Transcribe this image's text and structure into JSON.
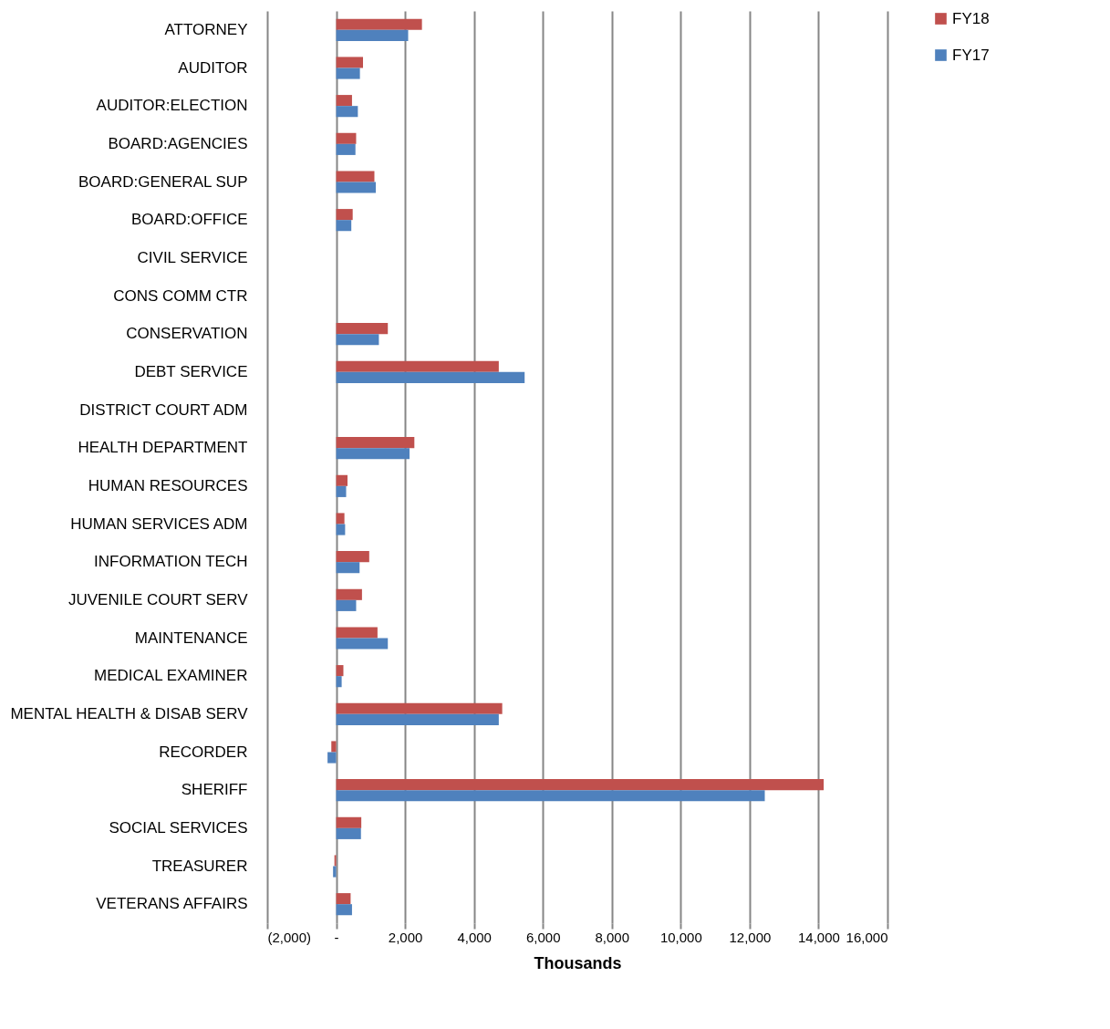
{
  "chart_data": {
    "type": "bar",
    "orientation": "horizontal",
    "xlabel": "Thousands",
    "categories": [
      "ATTORNEY",
      "AUDITOR",
      "AUDITOR:ELECTION",
      "BOARD:AGENCIES",
      "BOARD:GENERAL SUP",
      "BOARD:OFFICE",
      "CIVIL SERVICE",
      "CONS COMM CTR",
      "CONSERVATION",
      "DEBT SERVICE",
      "DISTRICT COURT ADM",
      "HEALTH DEPARTMENT",
      "HUMAN RESOURCES",
      "HUMAN SERVICES ADM",
      "INFORMATION TECH",
      "JUVENILE COURT SERV",
      "MAINTENANCE",
      "MEDICAL EXAMINER",
      "MENTAL HEALTH & DISAB SERV",
      "RECORDER",
      "SHERIFF",
      "SOCIAL SERVICES",
      "TREASURER",
      "VETERANS AFFAIRS"
    ],
    "series": [
      {
        "name": "FY18",
        "color": "#c0504d",
        "values": [
          2490,
          780,
          460,
          580,
          1110,
          480,
          0,
          0,
          1500,
          4720,
          0,
          2270,
          330,
          240,
          960,
          750,
          1200,
          210,
          4820,
          -140,
          14150,
          730,
          -50,
          420
        ]
      },
      {
        "name": "FY17",
        "color": "#4f81bd",
        "values": [
          2090,
          690,
          630,
          560,
          1150,
          440,
          0,
          0,
          1240,
          5470,
          0,
          2130,
          290,
          260,
          680,
          580,
          1500,
          160,
          4720,
          -250,
          12440,
          720,
          -90,
          460
        ]
      }
    ],
    "xlim": [
      -2000,
      16000
    ],
    "xticks": [
      {
        "value": -2000,
        "label": "(2,000)"
      },
      {
        "value": 0,
        "label": "-"
      },
      {
        "value": 2000,
        "label": "2,000"
      },
      {
        "value": 4000,
        "label": "4,000"
      },
      {
        "value": 6000,
        "label": "6,000"
      },
      {
        "value": 8000,
        "label": "8,000"
      },
      {
        "value": 10000,
        "label": "10,000"
      },
      {
        "value": 12000,
        "label": "12,000"
      },
      {
        "value": 14000,
        "label": "14,000"
      },
      {
        "value": 16000,
        "label": "16,000"
      }
    ],
    "grid": "x",
    "legend": "top right"
  }
}
